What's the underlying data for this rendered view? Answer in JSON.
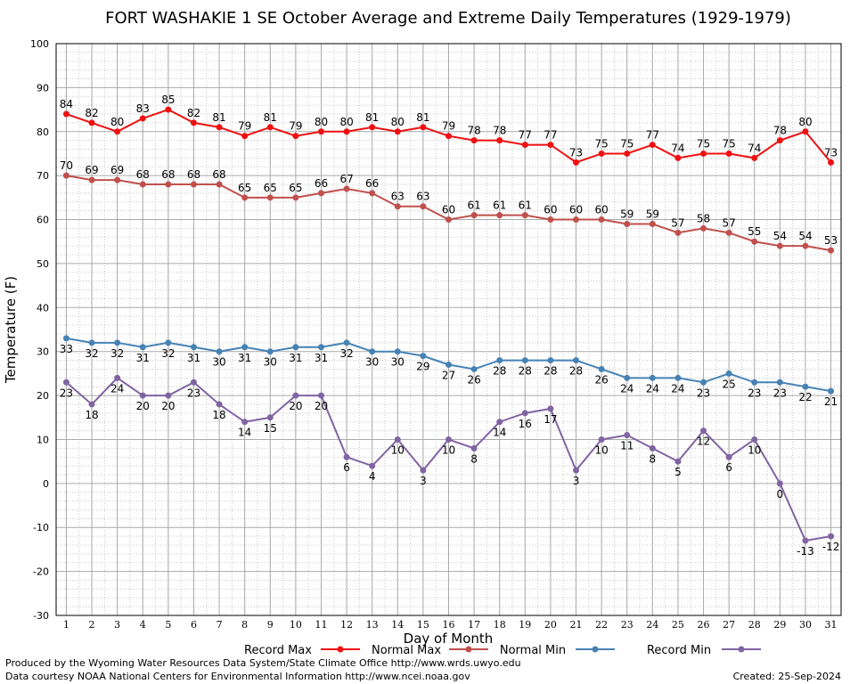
{
  "chart_data": {
    "type": "line",
    "title": "FORT WASHAKIE 1 SE October Average and Extreme Daily Temperatures (1929-1979)",
    "xlabel": "Day of Month",
    "ylabel": "Temperature (F)",
    "x": [
      1,
      2,
      3,
      4,
      5,
      6,
      7,
      8,
      9,
      10,
      11,
      12,
      13,
      14,
      15,
      16,
      17,
      18,
      19,
      20,
      21,
      22,
      23,
      24,
      25,
      26,
      27,
      28,
      29,
      30,
      31
    ],
    "xlim": [
      0.6,
      31.4
    ],
    "ylim": [
      -30,
      100
    ],
    "y_ticks": [
      -30,
      -20,
      -10,
      0,
      10,
      20,
      30,
      40,
      50,
      60,
      70,
      80,
      90,
      100
    ],
    "grid": true,
    "legend_position": "bottom",
    "series": [
      {
        "name": "Record Max",
        "color": "#ee1111",
        "label_side": "above",
        "values": [
          84,
          82,
          80,
          83,
          85,
          82,
          81,
          79,
          81,
          79,
          80,
          80,
          81,
          80,
          81,
          79,
          78,
          78,
          77,
          77,
          73,
          75,
          75,
          77,
          74,
          75,
          75,
          74,
          78,
          80,
          73
        ]
      },
      {
        "name": "Normal Max",
        "color": "#c0504d",
        "label_side": "above",
        "values": [
          70,
          69,
          69,
          68,
          68,
          68,
          68,
          65,
          65,
          65,
          66,
          67,
          66,
          63,
          63,
          60,
          61,
          61,
          61,
          60,
          60,
          60,
          59,
          59,
          57,
          58,
          57,
          55,
          54,
          54,
          53
        ]
      },
      {
        "name": "Normal Min",
        "color": "#4682b4",
        "label_side": "below",
        "values": [
          33,
          32,
          32,
          31,
          32,
          31,
          30,
          31,
          30,
          31,
          31,
          32,
          30,
          30,
          29,
          27,
          26,
          28,
          28,
          28,
          28,
          26,
          24,
          24,
          24,
          23,
          25,
          23,
          23,
          22,
          21
        ]
      },
      {
        "name": "Record Min",
        "color": "#8064a2",
        "label_side": "below",
        "values": [
          23,
          18,
          24,
          20,
          20,
          23,
          18,
          14,
          15,
          20,
          20,
          6,
          4,
          10,
          3,
          10,
          8,
          14,
          16,
          17,
          3,
          10,
          11,
          8,
          5,
          12,
          6,
          10,
          0,
          -13,
          -12
        ]
      }
    ]
  },
  "footer": {
    "credit_line1": "Produced by the Wyoming Water Resources Data System/State Climate Office http://www.wrds.uwyo.edu",
    "credit_line2": "Data courtesy NOAA National Centers for Environmental Information http://www.ncei.noaa.gov",
    "created": "Created:  25-Sep-2024"
  }
}
